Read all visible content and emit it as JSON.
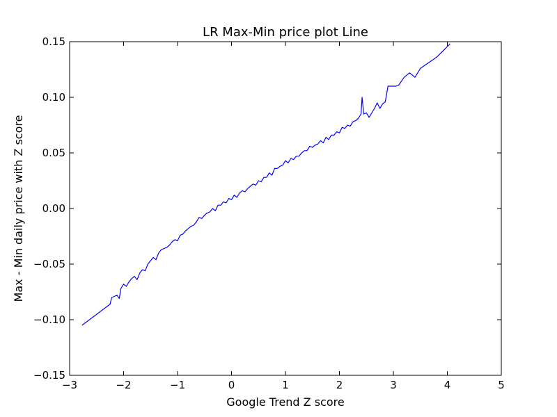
{
  "chart_data": {
    "type": "line",
    "title": "LR Max-Min price plot Line",
    "xlabel": "Google Trend Z score",
    "ylabel": "Max - Min daily price with Z score",
    "xlim": [
      -3,
      5
    ],
    "ylim": [
      -0.15,
      0.15
    ],
    "grid": false,
    "legend": "none",
    "x_ticks": [
      -3,
      -2,
      -1,
      0,
      1,
      2,
      3,
      4,
      5
    ],
    "x_tick_labels": [
      "−3",
      "−2",
      "−1",
      "0",
      "1",
      "2",
      "3",
      "4",
      "5"
    ],
    "y_ticks": [
      -0.15,
      -0.1,
      -0.05,
      0.0,
      0.05,
      0.1,
      0.15
    ],
    "y_tick_labels": [
      "−0.15",
      "−0.10",
      "−0.05",
      "0.00",
      "0.05",
      "0.10",
      "0.15"
    ],
    "series": [
      {
        "color": "#0000ff",
        "x": [
          -2.77,
          -2.25,
          -2.22,
          -2.12,
          -2.08,
          -2.05,
          -2.0,
          -1.95,
          -1.9,
          -1.85,
          -1.8,
          -1.75,
          -1.7,
          -1.65,
          -1.6,
          -1.55,
          -1.5,
          -1.45,
          -1.4,
          -1.35,
          -1.3,
          -1.25,
          -1.2,
          -1.15,
          -1.1,
          -1.05,
          -1.0,
          -0.95,
          -0.9,
          -0.85,
          -0.8,
          -0.75,
          -0.7,
          -0.65,
          -0.6,
          -0.55,
          -0.5,
          -0.45,
          -0.4,
          -0.35,
          -0.3,
          -0.25,
          -0.2,
          -0.15,
          -0.1,
          -0.05,
          0.0,
          0.05,
          0.1,
          0.15,
          0.2,
          0.25,
          0.3,
          0.35,
          0.4,
          0.45,
          0.5,
          0.55,
          0.6,
          0.65,
          0.7,
          0.75,
          0.8,
          0.85,
          0.9,
          0.95,
          1.0,
          1.05,
          1.1,
          1.15,
          1.2,
          1.25,
          1.3,
          1.35,
          1.4,
          1.45,
          1.5,
          1.55,
          1.6,
          1.65,
          1.7,
          1.75,
          1.8,
          1.85,
          1.9,
          1.95,
          2.0,
          2.05,
          2.1,
          2.15,
          2.2,
          2.25,
          2.3,
          2.35,
          2.4,
          2.42,
          2.45,
          2.5,
          2.55,
          2.6,
          2.65,
          2.7,
          2.75,
          2.8,
          2.85,
          2.9,
          3.05,
          3.1,
          3.2,
          3.3,
          3.4,
          3.5,
          3.8,
          4.05
        ],
        "y": [
          -0.105,
          -0.086,
          -0.08,
          -0.078,
          -0.081,
          -0.072,
          -0.068,
          -0.07,
          -0.066,
          -0.063,
          -0.061,
          -0.064,
          -0.058,
          -0.055,
          -0.056,
          -0.05,
          -0.047,
          -0.044,
          -0.046,
          -0.04,
          -0.037,
          -0.036,
          -0.035,
          -0.033,
          -0.03,
          -0.028,
          -0.029,
          -0.024,
          -0.023,
          -0.02,
          -0.018,
          -0.016,
          -0.015,
          -0.012,
          -0.008,
          -0.009,
          -0.006,
          -0.004,
          -0.003,
          0.0,
          -0.002,
          0.003,
          0.003,
          0.006,
          0.005,
          0.009,
          0.008,
          0.012,
          0.01,
          0.014,
          0.016,
          0.015,
          0.018,
          0.02,
          0.022,
          0.021,
          0.025,
          0.024,
          0.028,
          0.028,
          0.032,
          0.03,
          0.036,
          0.036,
          0.038,
          0.039,
          0.043,
          0.041,
          0.045,
          0.044,
          0.047,
          0.047,
          0.05,
          0.052,
          0.052,
          0.056,
          0.055,
          0.057,
          0.058,
          0.061,
          0.059,
          0.064,
          0.062,
          0.066,
          0.066,
          0.069,
          0.068,
          0.073,
          0.072,
          0.075,
          0.074,
          0.078,
          0.079,
          0.081,
          0.085,
          0.1,
          0.085,
          0.086,
          0.082,
          0.086,
          0.09,
          0.095,
          0.09,
          0.094,
          0.096,
          0.11,
          0.11,
          0.111,
          0.118,
          0.122,
          0.118,
          0.126,
          0.136,
          0.148
        ]
      }
    ]
  }
}
